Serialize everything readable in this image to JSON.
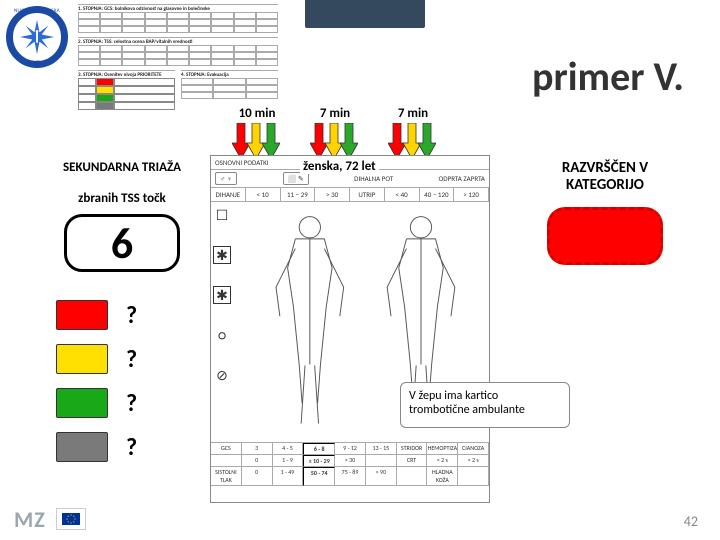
{
  "title": "primer V.",
  "arrow_groups": [
    {
      "label": "10 min",
      "arrows": [
        "#ff0000",
        "#ffd400",
        "#2aa82a"
      ]
    },
    {
      "label": "7 min",
      "arrows": [
        "#ff0000",
        "#ffd400",
        "#2aa82a"
      ]
    },
    {
      "label": "7 min",
      "arrows": [
        "#ff0000",
        "#ffd400",
        "#2aa82a"
      ]
    }
  ],
  "left": {
    "heading": "SEKUNDARNA TRIAŽA",
    "sub": "zbranih  TSS  točk",
    "score": "6",
    "categories": [
      {
        "color": "#ff0000",
        "q": "?"
      },
      {
        "color": "#ffe000",
        "q": "?"
      },
      {
        "color": "#18a818",
        "q": "?"
      },
      {
        "color": "#7a7a7a",
        "q": "?"
      }
    ]
  },
  "patient": "ženska, 72 let",
  "right": {
    "heading_l1": "RAZVRŠČEN V",
    "heading_l2": "KATEGORIJO",
    "box_fill": "#ff0000",
    "box_border": "#d00000"
  },
  "note": "V žepu ima kartico trombotične ambulante",
  "sheet": {
    "hdr_left": "OSNOVNI PODATKI",
    "row2_left_icons": "♂ ♀",
    "row2_right_icons": "⬜ ✎",
    "dih_label": "DIHANJE",
    "dih_cells": [
      "< 10",
      "11 – 29",
      "> 30"
    ],
    "utrip_label": "UTRIP",
    "utrip_cells": [
      "< 40",
      "40 – 120",
      "> 120"
    ],
    "sidecol": [
      "☐",
      "✱",
      "✱",
      "○",
      "⊘"
    ],
    "foot_labels": {
      "gcs": "GCS",
      "stridor": "STRIDOR",
      "hemo": "HEMOPTIZA",
      "cian": "CIANOZA",
      "tlak": "SISTOLNI TLAK",
      "crt": "CRT",
      "hk": "HLADNA KOŽA"
    },
    "gcs_cells": [
      "3",
      "4 - 5",
      "6 - 8",
      "9 - 12",
      "13 - 15"
    ],
    "gcs_hl_index": 2,
    "tlak_cells": [
      "0",
      "1 - 49",
      "50 - 74",
      "75 - 89",
      "> 90"
    ],
    "tlak_hl_index": 2,
    "dih2_cells": [
      "0",
      "1 - 9",
      "≥ 10 - 29",
      "> 30"
    ],
    "dih2_hl_index": 2,
    "crt_cells": [
      "< 2 s",
      "> 2 s"
    ]
  },
  "logo": {
    "text_top": "NUJNA MEDICINSKA",
    "text_bottom": "SLOVENIJA",
    "ring_color": "#1a4aa3",
    "star_color": "#2a6bd4"
  },
  "footer": {
    "mz": "MZ",
    "page": "42"
  },
  "mini_tables": {
    "t1": "1. STOPNJA: GCS: bolnikova odzivnost na glasovne in bolečinske",
    "t2": "2. STOPNJA: TSS: celostna ocena BAP/vitalnih vrednosti",
    "t3": "3. STOPNJA: Ocenitev nivoja PRIORITETE",
    "t4": "4. STOPNJA: Evakuacija",
    "colors": [
      "#ff0000",
      "#ffe000",
      "#18a818",
      "#7a7a7a"
    ]
  }
}
